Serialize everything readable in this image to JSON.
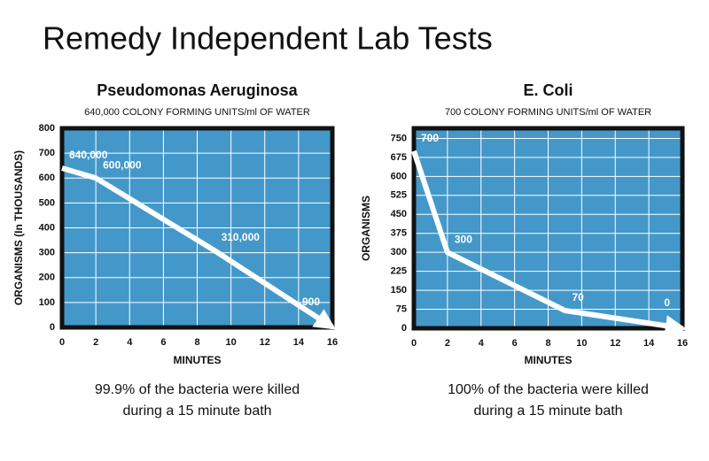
{
  "title": "Remedy Independent Lab Tests",
  "chart_data": [
    {
      "type": "line",
      "title": "Pseudomonas Aeruginosa",
      "subtitle": "640,000 COLONY FORMING UNITS/ml OF WATER",
      "x_label": "MINUTES",
      "y_label": "ORGANISMS (In THOUSANDS)",
      "x": [
        0,
        2,
        9,
        16
      ],
      "values": [
        640,
        600,
        310,
        0.9
      ],
      "value_labels": [
        "640,000",
        "600,000",
        "310,000",
        "900"
      ],
      "color": "#ffffff",
      "background": "#4398c9",
      "grid": true,
      "xlim": [
        0,
        16
      ],
      "xticks": [
        0,
        2,
        4,
        6,
        8,
        10,
        12,
        14,
        16
      ],
      "ylim": [
        0,
        800
      ],
      "yticks": [
        0,
        100,
        200,
        300,
        400,
        500,
        600,
        700,
        800
      ],
      "caption": [
        "99.9% of the bacteria were killed",
        "during a 15 minute bath"
      ]
    },
    {
      "type": "line",
      "title": "E. Coli",
      "subtitle": "700 COLONY FORMING UNITS/ml OF WATER",
      "x_label": "MINUTES",
      "y_label": "ORGANISMS",
      "x": [
        0,
        2,
        9,
        16
      ],
      "values": [
        700,
        300,
        70,
        0
      ],
      "color": "#ffffff",
      "background": "#4398c9",
      "grid": true,
      "xlim": [
        0,
        16
      ],
      "xticks": [
        0,
        2,
        4,
        6,
        8,
        10,
        12,
        14,
        16
      ],
      "ylim": [
        0,
        790
      ],
      "yticks": [
        0,
        75,
        150,
        225,
        300,
        375,
        450,
        525,
        600,
        675,
        750
      ],
      "caption": [
        "100% of the bacteria were killed",
        "during a 15 minute bath"
      ]
    }
  ]
}
